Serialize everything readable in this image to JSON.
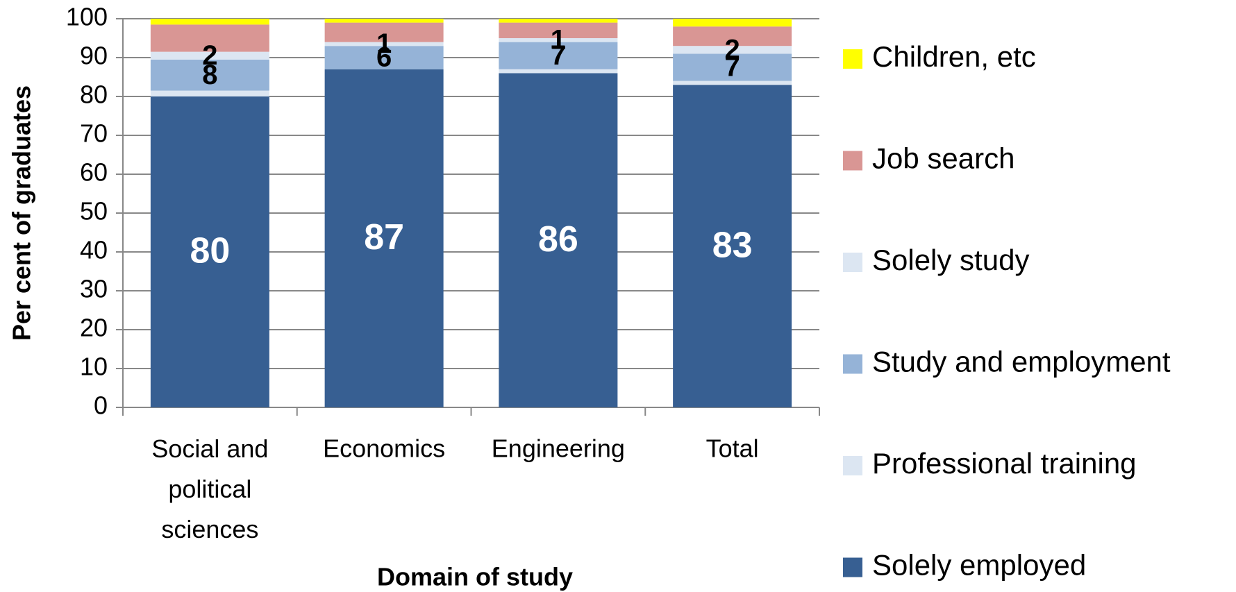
{
  "chart_data": {
    "type": "stacked_bar",
    "y_label": "Per cent of graduates",
    "x_label": "Domain of study",
    "categories": [
      "Social and political sciences",
      "Economics",
      "Engineering",
      "Total"
    ],
    "series": [
      {
        "name": "Solely employed",
        "color": "#375f92",
        "values": [
          80,
          87,
          86,
          83
        ],
        "data_labels": true,
        "label_color": "#ffffff"
      },
      {
        "name": "Professional training",
        "color": "#dce6f2",
        "values": [
          1.5,
          0,
          1,
          1
        ],
        "data_labels": false
      },
      {
        "name": "Study and employment",
        "color": "#95b3d7",
        "values": [
          8,
          6,
          7,
          7
        ],
        "data_labels": true,
        "label_color": "#000000"
      },
      {
        "name": "Solely study",
        "color": "#dce6f2",
        "values": [
          2,
          1,
          1,
          2
        ],
        "data_labels": true,
        "label_color": "#000000"
      },
      {
        "name": "Job search",
        "color": "#d99694",
        "values": [
          7,
          5,
          4,
          5
        ],
        "data_labels": false
      },
      {
        "name": "Children, etc",
        "color": "#ffff00",
        "values": [
          1.5,
          1,
          1,
          2
        ],
        "data_labels": false
      }
    ],
    "ylim": [
      0,
      100
    ],
    "yticks": [
      0,
      10,
      20,
      30,
      40,
      50,
      60,
      70,
      80,
      90,
      100
    ],
    "grid": true,
    "legend": "right"
  }
}
